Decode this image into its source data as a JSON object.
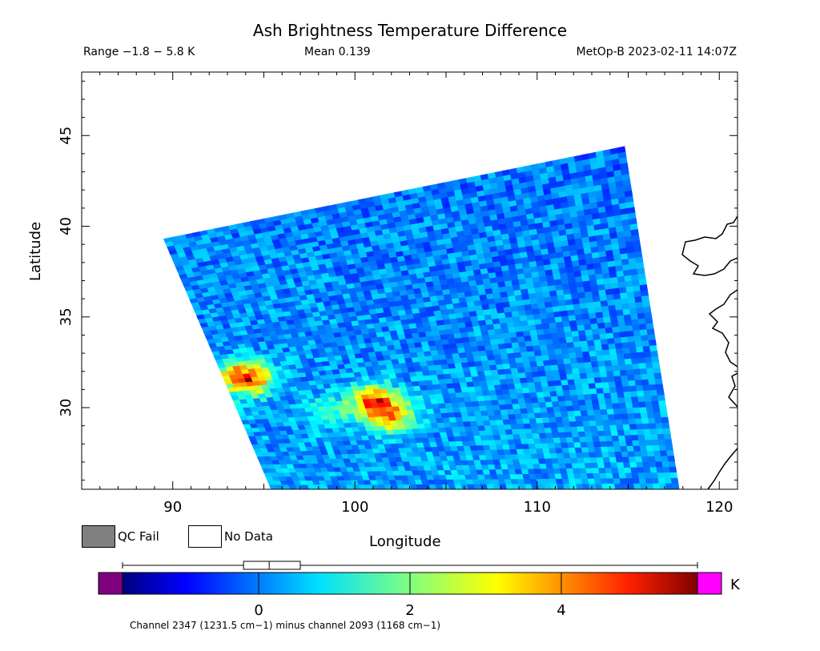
{
  "chart_data": {
    "type": "heatmap",
    "title": "Ash Brightness Temperature Difference",
    "stats": {
      "range": "Range −1.8 − 5.8 K",
      "mean": "Mean 0.139",
      "satellite_time": "MetOp-B 2023-02-11 14:07Z"
    },
    "xlabel": "Longitude",
    "ylabel": "Latitude",
    "xlim": [
      85,
      121
    ],
    "ylim": [
      25.5,
      48.5
    ],
    "xticks": [
      90,
      100,
      110,
      120
    ],
    "yticks": [
      30,
      35,
      40,
      45
    ],
    "swath": {
      "corners": [
        [
          89.5,
          39.3
        ],
        [
          114.8,
          44.4
        ],
        [
          117.8,
          25.5
        ],
        [
          95.4,
          25.5
        ]
      ],
      "background_value": 0.2,
      "hotspots": [
        {
          "lon": 94.0,
          "lat": 31.6,
          "value": 4.8
        },
        {
          "lon": 101.2,
          "lat": 30.3,
          "value": 3.9
        },
        {
          "lon": 102.0,
          "lat": 29.4,
          "value": 2.6
        },
        {
          "lon": 98.5,
          "lat": 29.8,
          "value": 1.2
        }
      ]
    },
    "legend": [
      {
        "label": "QC Fail",
        "color": "#808080"
      },
      {
        "label": "No Data",
        "color": "#ffffff"
      }
    ],
    "colorbar": {
      "min": -1.8,
      "max": 5.8,
      "ticks": [
        0,
        2,
        4
      ],
      "unit": "K",
      "under_color": "#800080",
      "over_color": "#ff00ff",
      "box_mean": 0.139,
      "box_q1": -0.2,
      "box_q3": 0.55,
      "whisker_min": -1.8,
      "whisker_max": 5.8
    },
    "footnote": "Channel 2347 (1231.5 cm−1) minus channel 2093 (1168 cm−1)"
  }
}
